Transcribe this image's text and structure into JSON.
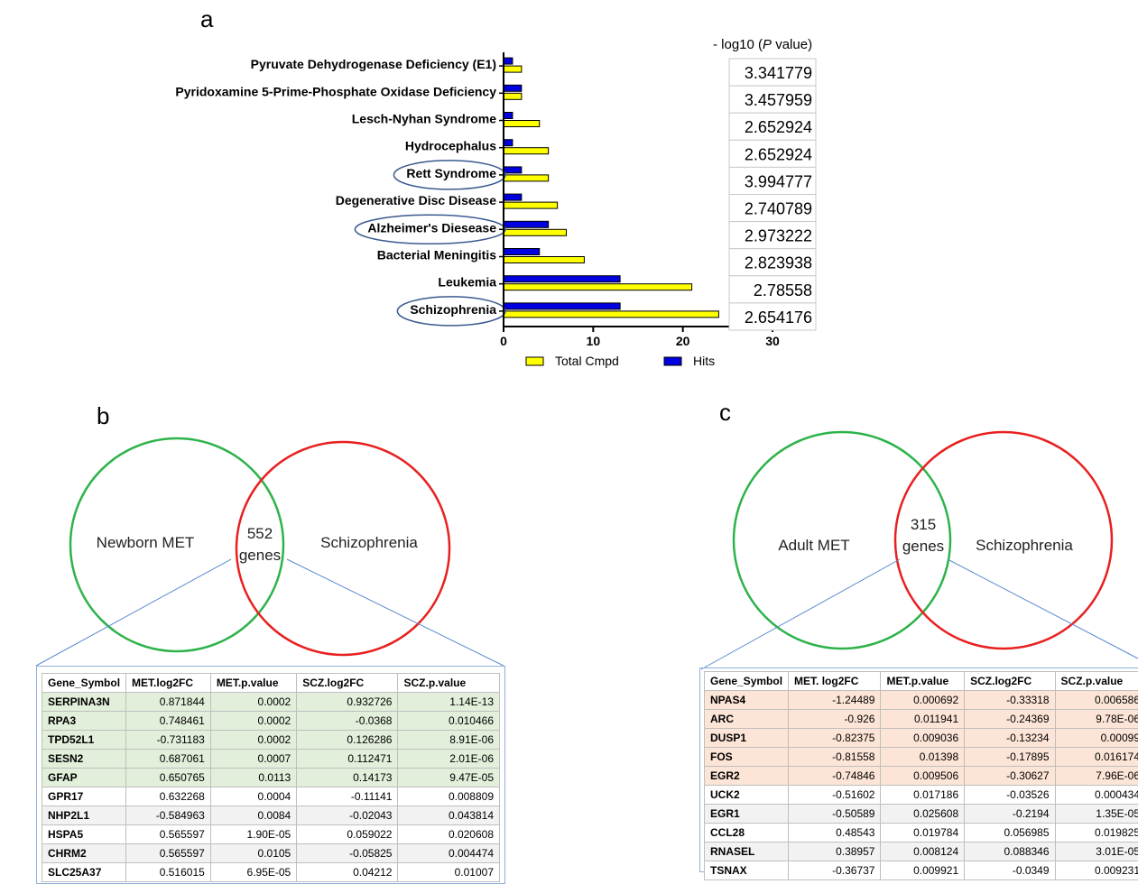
{
  "panels": {
    "a": "a",
    "b": "b",
    "c": "c"
  },
  "chart_data": {
    "type": "bar",
    "orientation": "horizontal",
    "categories": [
      "Pyruvate Dehydrogenase Deficiency (E1)",
      "Pyridoxamine 5-Prime-Phosphate Oxidase Deficiency",
      "Lesch-Nyhan Syndrome",
      "Hydrocephalus",
      "Rett Syndrome",
      "Degenerative Disc Disease",
      "Alzheimer's Diesease",
      "Bacterial Meningitis",
      "Leukemia",
      "Schizophrenia"
    ],
    "series": [
      {
        "name": "Hits",
        "color": "#0000e0",
        "values": [
          1,
          2,
          1,
          1,
          2,
          2,
          5,
          4,
          13,
          13
        ]
      },
      {
        "name": "Total Cmpd",
        "color": "#ffff00",
        "values": [
          2,
          2,
          4,
          5,
          5,
          6,
          7,
          9,
          21,
          24
        ]
      }
    ],
    "xlim": [
      0,
      30
    ],
    "xticks": [
      "0",
      "10",
      "20",
      "30"
    ],
    "legend_position": "bottom",
    "legend": [
      "Total Cmpd",
      "Hits"
    ],
    "circled": [
      "Rett Syndrome",
      "Alzheimer's Diesease",
      "Schizophrenia"
    ],
    "pvalue_header": "- log10 (P value)",
    "pvalue_header_parts": [
      "- log10 (",
      "P",
      " value)"
    ],
    "pvalues": [
      "3.341779",
      "3.457959",
      "2.652924",
      "2.652924",
      "3.994777",
      "2.740789",
      "2.973222",
      "2.823938",
      "2.78558",
      "2.654176"
    ]
  },
  "venn_b": {
    "left": "Newborn MET",
    "right": "Schizophrenia",
    "count": "552",
    "unit": "genes"
  },
  "venn_c": {
    "left": "Adult MET",
    "right": "Schizophrenia",
    "count": "315",
    "unit": "genes"
  },
  "table_b": {
    "headers": [
      "Gene_Symbol",
      "MET.log2FC",
      "MET.p.value",
      "SCZ.log2FC",
      "SCZ.p.value"
    ],
    "rows": [
      [
        "SERPINA3N",
        "0.871844",
        "0.0002",
        "0.932726",
        "1.14E-13"
      ],
      [
        "RPA3",
        "0.748461",
        "0.0002",
        "-0.0368",
        "0.010466"
      ],
      [
        "TPD52L1",
        "-0.731183",
        "0.0002",
        "0.126286",
        "8.91E-06"
      ],
      [
        "SESN2",
        "0.687061",
        "0.0007",
        "0.112471",
        "2.01E-06"
      ],
      [
        "GFAP",
        "0.650765",
        "0.0113",
        "0.14173",
        "9.47E-05"
      ],
      [
        "GPR17",
        "0.632268",
        "0.0004",
        "-0.11141",
        "0.008809"
      ],
      [
        "NHP2L1",
        "-0.584963",
        "0.0084",
        "-0.02043",
        "0.043814"
      ],
      [
        "HSPA5",
        "0.565597",
        "1.90E-05",
        "0.059022",
        "0.020608"
      ],
      [
        "CHRM2",
        "0.565597",
        "0.0105",
        "-0.05825",
        "0.004474"
      ],
      [
        "SLC25A37",
        "0.516015",
        "6.95E-05",
        "0.04212",
        "0.01007"
      ]
    ]
  },
  "table_c": {
    "headers": [
      "Gene_Symbol",
      "MET. log2FC",
      "MET.p.value",
      "SCZ.log2FC",
      "SCZ.p.value"
    ],
    "rows": [
      [
        "NPAS4",
        "-1.24489",
        "0.000692",
        "-0.33318",
        "0.006586"
      ],
      [
        "ARC",
        "-0.926",
        "0.011941",
        "-0.24369",
        "9.78E-06"
      ],
      [
        "DUSP1",
        "-0.82375",
        "0.009036",
        "-0.13234",
        "0.00099"
      ],
      [
        "FOS",
        "-0.81558",
        "0.01398",
        "-0.17895",
        "0.016174"
      ],
      [
        "EGR2",
        "-0.74846",
        "0.009506",
        "-0.30627",
        "7.96E-06"
      ],
      [
        "UCK2",
        "-0.51602",
        "0.017186",
        "-0.03526",
        "0.000434"
      ],
      [
        "EGR1",
        "-0.50589",
        "0.025608",
        "-0.2194",
        "1.35E-05"
      ],
      [
        "CCL28",
        "0.48543",
        "0.019784",
        "0.056985",
        "0.019825"
      ],
      [
        "RNASEL",
        "0.38957",
        "0.008124",
        "0.088346",
        "3.01E-05"
      ],
      [
        "TSNAX",
        "-0.36737",
        "0.009921",
        "-0.0349",
        "0.009231"
      ]
    ]
  }
}
